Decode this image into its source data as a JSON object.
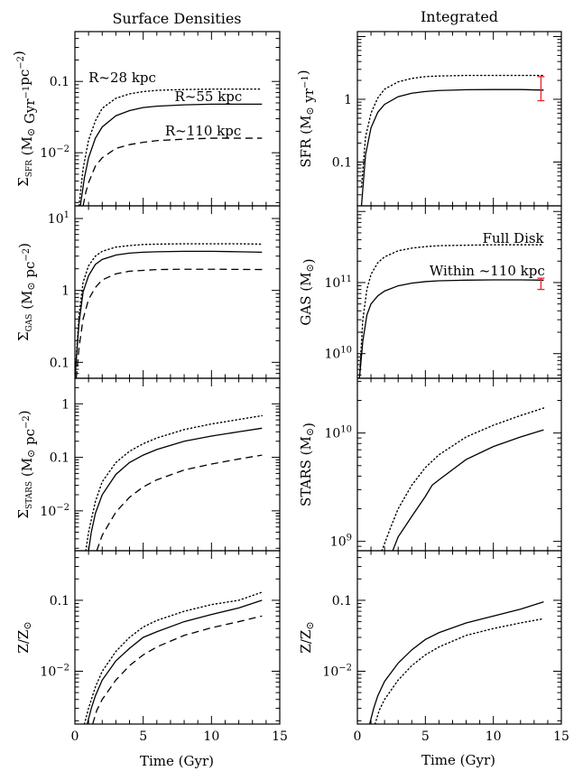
{
  "columns": [
    {
      "title": "Surface Densities"
    },
    {
      "title": "Integrated"
    }
  ],
  "x_axis": {
    "label": "Time (Gyr)",
    "ticks": [
      "0",
      "5",
      "10",
      "15"
    ],
    "range": [
      0,
      15
    ]
  },
  "colors": {
    "axes": "#000000",
    "error_bar": "#e8202a"
  },
  "chart_data": [
    {
      "type": "line",
      "id": "sd-sfr",
      "col": 0,
      "row": 0,
      "yscale": "log",
      "ylim": [
        0.0018,
        0.5
      ],
      "ylabel": {
        "main": "Σ",
        "sub": "SFR",
        "rest": " (M",
        "sun": "⊙",
        "tail": " Gyr",
        "sup1": "−1",
        "tail2": "pc",
        "sup2": "−2",
        "end": ")"
      },
      "yticks": [
        {
          "v": 0.01,
          "label": "10",
          "sup": "−2"
        },
        {
          "v": 0.1,
          "label": "0.1"
        }
      ],
      "series": [
        {
          "style": "dotted",
          "x": [
            0.3,
            0.6,
            1,
            1.5,
            2,
            3,
            4,
            5,
            6,
            8,
            10,
            12,
            13.7
          ],
          "y": [
            0.0018,
            0.006,
            0.015,
            0.028,
            0.042,
            0.058,
            0.067,
            0.072,
            0.075,
            0.077,
            0.078,
            0.078,
            0.078
          ]
        },
        {
          "style": "solid",
          "x": [
            0.4,
            0.7,
            1,
            1.5,
            2,
            3,
            4,
            5,
            6,
            8,
            10,
            12,
            13.7
          ],
          "y": [
            0.0018,
            0.0045,
            0.0085,
            0.016,
            0.023,
            0.033,
            0.039,
            0.043,
            0.045,
            0.047,
            0.048,
            0.048,
            0.048
          ]
        },
        {
          "style": "dashed",
          "x": [
            0.6,
            0.8,
            1,
            1.5,
            2,
            3,
            4,
            5,
            6,
            8,
            10,
            12,
            13.7
          ],
          "y": [
            0.0018,
            0.0028,
            0.0038,
            0.0065,
            0.0085,
            0.0115,
            0.013,
            0.014,
            0.0148,
            0.0155,
            0.016,
            0.016,
            0.016
          ]
        }
      ],
      "annotations": [
        {
          "text": "R~28 kpc",
          "x": 1.0,
          "y": 0.098
        },
        {
          "text": "R~55 kpc",
          "x": 7.3,
          "y": 0.053
        },
        {
          "text": "R~110 kpc",
          "x": 6.6,
          "y": 0.0175
        }
      ]
    },
    {
      "type": "line",
      "id": "int-sfr",
      "col": 1,
      "row": 0,
      "yscale": "log",
      "ylim": [
        0.02,
        12
      ],
      "ylabel": {
        "main": "SFR (M",
        "sun": "⊙",
        "tail": " yr",
        "sup1": "−1",
        "end": ")"
      },
      "yticks": [
        {
          "v": 0.1,
          "label": "0.1"
        },
        {
          "v": 1,
          "label": "1"
        }
      ],
      "series": [
        {
          "style": "dotted",
          "x": [
            0.3,
            0.6,
            1,
            1.5,
            2,
            3,
            4,
            5,
            6,
            8,
            10,
            12,
            13.7
          ],
          "y": [
            0.04,
            0.25,
            0.6,
            1.05,
            1.45,
            1.9,
            2.15,
            2.3,
            2.35,
            2.4,
            2.4,
            2.4,
            2.4
          ]
        },
        {
          "style": "solid",
          "x": [
            0.3,
            0.6,
            1,
            1.5,
            2,
            3,
            4,
            5,
            6,
            8,
            10,
            12,
            13.7
          ],
          "y": [
            0.02,
            0.13,
            0.35,
            0.62,
            0.83,
            1.1,
            1.25,
            1.33,
            1.38,
            1.42,
            1.43,
            1.43,
            1.4
          ]
        }
      ],
      "error_bars": [
        {
          "x": 13.5,
          "low": 0.95,
          "high": 2.3
        }
      ]
    },
    {
      "type": "line",
      "id": "sd-gas",
      "col": 0,
      "row": 1,
      "yscale": "log",
      "ylim": [
        0.06,
        15
      ],
      "ylabel": {
        "main": "Σ",
        "sub": "GAS",
        "rest": " (M",
        "sun": "⊙",
        "tail": " pc",
        "sup1": "−2",
        "end": ")"
      },
      "yticks": [
        {
          "v": 0.1,
          "label": "0.1"
        },
        {
          "v": 1,
          "label": "1"
        },
        {
          "v": 10,
          "label": "10",
          "sup": "1"
        }
      ],
      "series": [
        {
          "style": "dotted",
          "x": [
            0,
            0.3,
            0.6,
            1,
            1.5,
            2,
            3,
            4,
            5,
            6,
            8,
            10,
            12,
            13.7
          ],
          "y": [
            0.06,
            0.45,
            1.3,
            2.2,
            3.0,
            3.5,
            4.0,
            4.2,
            4.35,
            4.4,
            4.45,
            4.45,
            4.45,
            4.4
          ]
        },
        {
          "style": "solid",
          "x": [
            0,
            0.3,
            0.6,
            1,
            1.5,
            2,
            3,
            4,
            5,
            6,
            8,
            10,
            12,
            13.7
          ],
          "y": [
            0.06,
            0.35,
            0.95,
            1.6,
            2.3,
            2.7,
            3.1,
            3.3,
            3.4,
            3.45,
            3.5,
            3.5,
            3.45,
            3.4
          ]
        },
        {
          "style": "dashed",
          "x": [
            0.1,
            0.3,
            0.6,
            1,
            1.5,
            2,
            3,
            4,
            5,
            6,
            8,
            10,
            12,
            13.7
          ],
          "y": [
            0.06,
            0.16,
            0.4,
            0.75,
            1.1,
            1.4,
            1.7,
            1.85,
            1.9,
            1.95,
            1.97,
            1.97,
            1.96,
            1.95
          ]
        }
      ]
    },
    {
      "type": "line",
      "id": "int-gas",
      "col": 1,
      "row": 1,
      "yscale": "log",
      "ylim": [
        4500000000.0,
        1200000000000.0
      ],
      "ylabel": {
        "main": "GAS (M",
        "sun": "⊙",
        "end": ")"
      },
      "yticks": [
        {
          "v": 10000000000.0,
          "label": "10",
          "sup": "10"
        },
        {
          "v": 100000000000.0,
          "label": "10",
          "sup": "11"
        }
      ],
      "series": [
        {
          "style": "dotted",
          "x": [
            0.15,
            0.4,
            0.7,
            1,
            1.5,
            2,
            3,
            4,
            5,
            6,
            8,
            10,
            12,
            13.7
          ],
          "y": [
            4500000000.0,
            30000000000.0,
            80000000000.0,
            130000000000.0,
            190000000000.0,
            230000000000.0,
            280000000000.0,
            305000000000.0,
            320000000000.0,
            330000000000.0,
            335000000000.0,
            340000000000.0,
            340000000000.0,
            340000000000.0
          ]
        },
        {
          "style": "solid",
          "x": [
            0.15,
            0.4,
            0.7,
            1,
            1.5,
            2,
            3,
            4,
            5,
            6,
            8,
            10,
            12,
            13.7
          ],
          "y": [
            4500000000.0,
            15000000000.0,
            35000000000.0,
            50000000000.0,
            65000000000.0,
            76000000000.0,
            90000000000.0,
            98000000000.0,
            103000000000.0,
            106000000000.0,
            108000000000.0,
            109000000000.0,
            109000000000.0,
            108000000000.0
          ]
        }
      ],
      "error_bars": [
        {
          "x": 13.5,
          "low": 80000000000.0,
          "high": 115000000000.0
        }
      ],
      "annotations": [
        {
          "text": "Full Disk",
          "x": 9.2,
          "y": 360000000000.0
        },
        {
          "text": "Within ~110 kpc",
          "x": 5.3,
          "y": 126000000000.0
        }
      ]
    },
    {
      "type": "line",
      "id": "sd-stars",
      "col": 0,
      "row": 2,
      "yscale": "log",
      "ylim": [
        0.0018,
        3
      ],
      "ylabel": {
        "main": "Σ",
        "sub": "STARS",
        "rest": " (M",
        "sun": "⊙",
        "tail": " pc",
        "sup1": "−2",
        "end": ")"
      },
      "yticks": [
        {
          "v": 0.01,
          "label": "10",
          "sup": "−2"
        },
        {
          "v": 0.1,
          "label": "0.1"
        },
        {
          "v": 1,
          "label": "1"
        }
      ],
      "series": [
        {
          "style": "dotted",
          "x": [
            0.8,
            1,
            1.5,
            2,
            3,
            4,
            5,
            6,
            8,
            10,
            12,
            13.7
          ],
          "y": [
            0.0018,
            0.004,
            0.015,
            0.035,
            0.08,
            0.13,
            0.18,
            0.23,
            0.33,
            0.42,
            0.51,
            0.6
          ]
        },
        {
          "style": "solid",
          "x": [
            1,
            1.2,
            1.5,
            2,
            3,
            4,
            5,
            6,
            8,
            10,
            12,
            13.7
          ],
          "y": [
            0.0018,
            0.004,
            0.009,
            0.02,
            0.048,
            0.08,
            0.11,
            0.14,
            0.2,
            0.25,
            0.3,
            0.35
          ]
        },
        {
          "style": "dashed",
          "x": [
            1.6,
            2,
            3,
            4,
            5,
            6,
            8,
            10,
            12,
            13.7
          ],
          "y": [
            0.0018,
            0.0035,
            0.0095,
            0.018,
            0.028,
            0.038,
            0.058,
            0.075,
            0.093,
            0.11
          ]
        }
      ]
    },
    {
      "type": "line",
      "id": "int-stars",
      "col": 1,
      "row": 2,
      "yscale": "log",
      "ylim": [
        820000000.0,
        32000000000.0
      ],
      "ylabel": {
        "main": "STARS (M",
        "sun": "⊙",
        "end": ")"
      },
      "yticks": [
        {
          "v": 1000000000.0,
          "label": "10",
          "sup": "9"
        },
        {
          "v": 10000000000.0,
          "label": "10",
          "sup": "10"
        }
      ],
      "series": [
        {
          "style": "dotted",
          "x": [
            1.8,
            2.5,
            3,
            4,
            5,
            6,
            8,
            10,
            12,
            13.7
          ],
          "y": [
            820000000.0,
            1400000000.0,
            2000000000.0,
            3300000000.0,
            4800000000.0,
            6300000000.0,
            9200000000.0,
            11800000000.0,
            14500000000.0,
            17000000000.0
          ]
        },
        {
          "style": "solid",
          "x": [
            2.6,
            3,
            4,
            5,
            5.5,
            6,
            8,
            10,
            12,
            13.7
          ],
          "y": [
            820000000.0,
            1100000000.0,
            1700000000.0,
            2600000000.0,
            3300000000.0,
            3700000000.0,
            5700000000.0,
            7500000000.0,
            9200000000.0,
            10700000000.0
          ]
        }
      ]
    },
    {
      "type": "line",
      "id": "sd-z",
      "col": 0,
      "row": 3,
      "yscale": "log",
      "ylim": [
        0.0018,
        0.5
      ],
      "ylabel": {
        "main": "Z/Z",
        "sun": "⊙"
      },
      "yticks": [
        {
          "v": 0.01,
          "label": "10",
          "sup": "−2"
        },
        {
          "v": 0.1,
          "label": "0.1"
        }
      ],
      "series": [
        {
          "style": "dotted",
          "x": [
            0.7,
            1,
            1.5,
            2,
            3,
            4,
            5,
            6,
            8,
            10,
            12,
            13.7
          ],
          "y": [
            0.0018,
            0.003,
            0.006,
            0.01,
            0.019,
            0.03,
            0.042,
            0.052,
            0.07,
            0.087,
            0.1,
            0.13
          ]
        },
        {
          "style": "solid",
          "x": [
            0.9,
            1.2,
            1.5,
            2,
            3,
            4,
            5,
            6,
            8,
            10,
            12,
            13.7
          ],
          "y": [
            0.0018,
            0.003,
            0.0045,
            0.0075,
            0.014,
            0.021,
            0.03,
            0.036,
            0.05,
            0.063,
            0.078,
            0.1
          ]
        },
        {
          "style": "dashed",
          "x": [
            1.3,
            1.6,
            2,
            3,
            4,
            5,
            6,
            8,
            10,
            12,
            13.7
          ],
          "y": [
            0.0018,
            0.0028,
            0.004,
            0.0075,
            0.012,
            0.017,
            0.022,
            0.032,
            0.041,
            0.05,
            0.06
          ]
        }
      ]
    },
    {
      "type": "line",
      "id": "int-z",
      "col": 1,
      "row": 3,
      "yscale": "log",
      "ylim": [
        0.0018,
        0.5
      ],
      "ylabel": {
        "main": "Z/Z",
        "sun": "⊙"
      },
      "yticks": [
        {
          "v": 0.01,
          "label": "10",
          "sup": "−2"
        },
        {
          "v": 0.1,
          "label": "0.1"
        }
      ],
      "series": [
        {
          "style": "solid",
          "x": [
            0.9,
            1.2,
            1.5,
            2,
            3,
            4,
            5,
            6,
            8,
            10,
            12,
            13.7
          ],
          "y": [
            0.0018,
            0.003,
            0.0045,
            0.0072,
            0.013,
            0.02,
            0.028,
            0.035,
            0.048,
            0.06,
            0.075,
            0.095
          ]
        },
        {
          "style": "dotted",
          "x": [
            1.3,
            1.6,
            2,
            3,
            4,
            5,
            6,
            8,
            10,
            12,
            13.7
          ],
          "y": [
            0.0018,
            0.0028,
            0.004,
            0.0075,
            0.012,
            0.017,
            0.022,
            0.032,
            0.04,
            0.048,
            0.055
          ]
        }
      ]
    }
  ]
}
